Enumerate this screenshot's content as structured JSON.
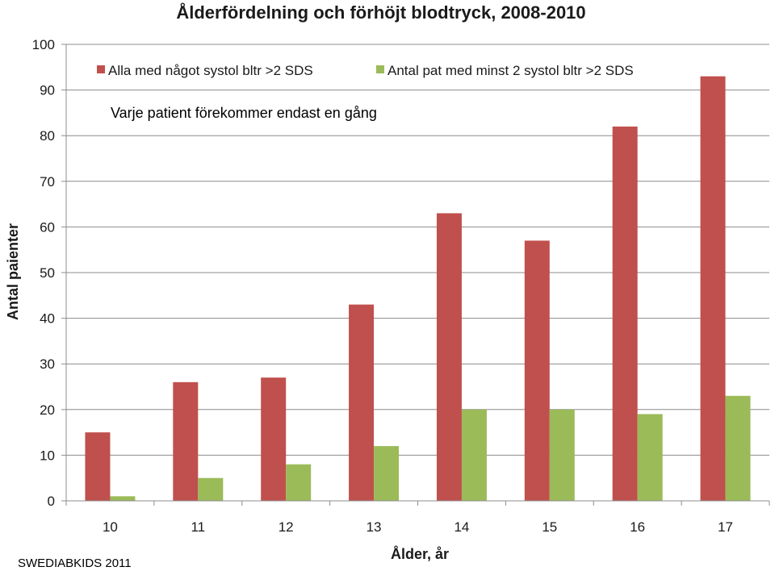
{
  "chart_data": {
    "type": "bar",
    "title": "Ålderfördelning och förhöjt blodtryck, 2008-2010",
    "xlabel": "Ålder, år",
    "ylabel": "Antal paienter",
    "categories": [
      "10",
      "11",
      "12",
      "13",
      "14",
      "15",
      "16",
      "17"
    ],
    "series": [
      {
        "name": "Alla med något systol bltr >2 SDS",
        "color": "#c0504d",
        "values": [
          15,
          26,
          27,
          43,
          63,
          57,
          82,
          93
        ]
      },
      {
        "name": "Antal pat med minst 2 systol bltr >2 SDS",
        "color": "#9bbb59",
        "values": [
          1,
          5,
          8,
          12,
          20,
          20,
          19,
          23
        ]
      }
    ],
    "ylim": [
      0,
      100
    ],
    "yticks": [
      0,
      10,
      20,
      30,
      40,
      50,
      60,
      70,
      80,
      90,
      100
    ],
    "grid": true,
    "legend_position": "top",
    "annotation": "Varje patient förekommer endast en gång",
    "source": "SWEDIABKIDS 2011"
  }
}
